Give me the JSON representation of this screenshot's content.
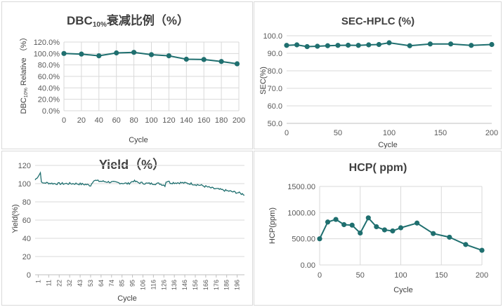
{
  "colors": {
    "series": "#1f6f6f",
    "marker": "#1f6f6f"
  },
  "chart_data": [
    {
      "id": "dbc",
      "type": "line",
      "title": "DBC",
      "title_sub": "10%",
      "title_rest": "衰减比例（%）",
      "xlabel": "Cycle",
      "ylabel": "DBC",
      "ylabel_sub": "10%",
      "ylabel_rest": " Relative （%）",
      "xlim": [
        0,
        200
      ],
      "ylim": [
        0,
        120
      ],
      "xticks": [
        0,
        20,
        40,
        60,
        80,
        100,
        120,
        140,
        160,
        180,
        200
      ],
      "ytick_labels": [
        "0.0%",
        "20.0%",
        "40.0%",
        "60.0%",
        "80.0%",
        "100.0%",
        "120.0%"
      ],
      "yticks": [
        0,
        20,
        40,
        60,
        80,
        100,
        120
      ],
      "x": [
        0,
        20,
        40,
        60,
        80,
        100,
        120,
        140,
        160,
        180,
        198
      ],
      "y": [
        100,
        99,
        96,
        101,
        102,
        98,
        96,
        90,
        89.5,
        86,
        82
      ],
      "markers": true
    },
    {
      "id": "sec",
      "type": "line",
      "title": "SEC-HPLC (%)",
      "xlabel": "Cycle",
      "ylabel": "SEC(%)",
      "xlim": [
        0,
        200
      ],
      "ylim": [
        50,
        100
      ],
      "xticks": [
        0,
        50,
        100,
        150,
        200
      ],
      "yticks": [
        50,
        60,
        70,
        80,
        90,
        100
      ],
      "ytick_labels": [
        "50.0",
        "60.0",
        "70.0",
        "80.0",
        "90.0",
        "100.0"
      ],
      "x": [
        0,
        10,
        20,
        30,
        40,
        50,
        60,
        70,
        80,
        90,
        100,
        120,
        140,
        160,
        180,
        200
      ],
      "y": [
        94.5,
        94.8,
        93.8,
        94,
        94.3,
        94.5,
        94.6,
        94.5,
        94.8,
        95,
        96,
        94.3,
        95.3,
        95.3,
        94.5,
        95
      ],
      "markers": true
    },
    {
      "id": "yield",
      "type": "line",
      "title": "Yield（%）",
      "xlabel": "Cycle",
      "ylabel": "Yield(%)",
      "ylim": [
        0,
        120
      ],
      "yticks": [
        0,
        20,
        40,
        60,
        80,
        100,
        120
      ],
      "ytick_labels": [
        "0",
        "20",
        "40",
        "60",
        "80",
        "100",
        "120"
      ],
      "xtick_labels": [
        "1",
        "11",
        "22",
        "32",
        "43",
        "53",
        "64",
        "74",
        "85",
        "95",
        "106",
        "116",
        "126",
        "136",
        "146",
        "156",
        "166",
        "176",
        "186",
        "196"
      ],
      "xlim": [
        1,
        201
      ],
      "anchors_x": [
        1,
        3,
        5,
        6,
        7,
        8,
        10,
        20,
        30,
        40,
        50,
        54,
        57,
        60,
        70,
        80,
        90,
        95,
        100,
        110,
        120,
        125,
        126,
        128,
        130,
        140,
        150,
        155,
        160,
        170,
        180,
        190,
        195,
        201
      ],
      "anchors_y": [
        104,
        107,
        110,
        112,
        103,
        100,
        101,
        100,
        100,
        100,
        99,
        98,
        104,
        103,
        102,
        101,
        100,
        103,
        101,
        100,
        100,
        98,
        102,
        103,
        101,
        101,
        100,
        99,
        98,
        95,
        93,
        91,
        90,
        88
      ],
      "markers": false
    },
    {
      "id": "hcp",
      "type": "line",
      "title": "HCP( ppm)",
      "xlabel": "Cycle",
      "ylabel": "HCP(ppm)",
      "xlim": [
        0,
        200
      ],
      "ylim": [
        0,
        1500
      ],
      "xticks": [
        0,
        50,
        100,
        150,
        200
      ],
      "yticks": [
        0,
        500,
        1000,
        1500
      ],
      "ytick_labels": [
        "0.00",
        "500.00",
        "1000.00",
        "1500.00"
      ],
      "x": [
        0,
        10,
        20,
        30,
        40,
        50,
        60,
        70,
        80,
        90,
        100,
        120,
        140,
        160,
        180,
        200
      ],
      "y": [
        500,
        820,
        870,
        770,
        760,
        610,
        900,
        730,
        670,
        650,
        710,
        800,
        600,
        530,
        390,
        280
      ],
      "markers": true
    }
  ]
}
